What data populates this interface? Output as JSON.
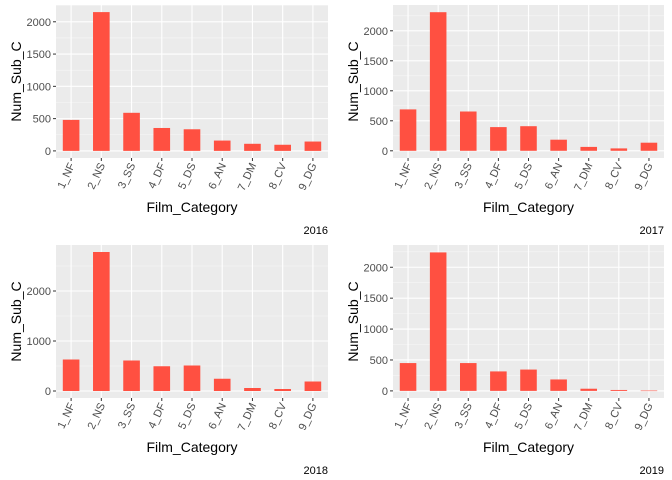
{
  "colors": {
    "bar": "#FF5041",
    "panel_bg": "#EBEBEB",
    "grid_major": "#FFFFFF",
    "tick": "#333333"
  },
  "chart_data": [
    {
      "type": "bar",
      "caption": "2016",
      "xlabel": "Film_Category",
      "ylabel": "Num_Sub_C",
      "categories": [
        "1_NF",
        "2_NS",
        "3_SS",
        "4_DF",
        "5_DS",
        "6_AN",
        "7_DM",
        "8_CV",
        "9_DG"
      ],
      "values": [
        480,
        2150,
        590,
        355,
        335,
        160,
        110,
        95,
        145
      ],
      "yticks": [
        0,
        500,
        1000,
        1500,
        2000
      ],
      "ylim": [
        -110,
        2260
      ],
      "grid": true
    },
    {
      "type": "bar",
      "caption": "2017",
      "xlabel": "Film_Category",
      "ylabel": "Num_Sub_C",
      "categories": [
        "1_NF",
        "2_NS",
        "3_SS",
        "4_DF",
        "5_DS",
        "6_AN",
        "7_DM",
        "8_CV",
        "9_DG"
      ],
      "values": [
        690,
        2310,
        655,
        395,
        410,
        185,
        65,
        40,
        135
      ],
      "yticks": [
        0,
        500,
        1000,
        1500,
        2000
      ],
      "ylim": [
        -120,
        2430
      ],
      "grid": true
    },
    {
      "type": "bar",
      "caption": "2018",
      "xlabel": "Film_Category",
      "ylabel": "Num_Sub_C",
      "categories": [
        "1_NF",
        "2_NS",
        "3_SS",
        "4_DF",
        "5_DS",
        "6_AN",
        "7_DM",
        "8_CV",
        "9_DG"
      ],
      "values": [
        630,
        2780,
        610,
        495,
        510,
        245,
        60,
        40,
        190
      ],
      "yticks": [
        0,
        1000,
        2000
      ],
      "ylim": [
        -140,
        2920
      ],
      "grid": true
    },
    {
      "type": "bar",
      "caption": "2019",
      "xlabel": "Film_Category",
      "ylabel": "Num_Sub_C",
      "categories": [
        "1_NF",
        "2_NS",
        "3_SS",
        "4_DF",
        "5_DS",
        "6_AN",
        "7_DM",
        "8_CV",
        "9_DG"
      ],
      "values": [
        450,
        2240,
        450,
        315,
        345,
        185,
        35,
        15,
        5
      ],
      "yticks": [
        0,
        500,
        1000,
        1500,
        2000
      ],
      "ylim": [
        -115,
        2360
      ],
      "grid": true
    }
  ]
}
